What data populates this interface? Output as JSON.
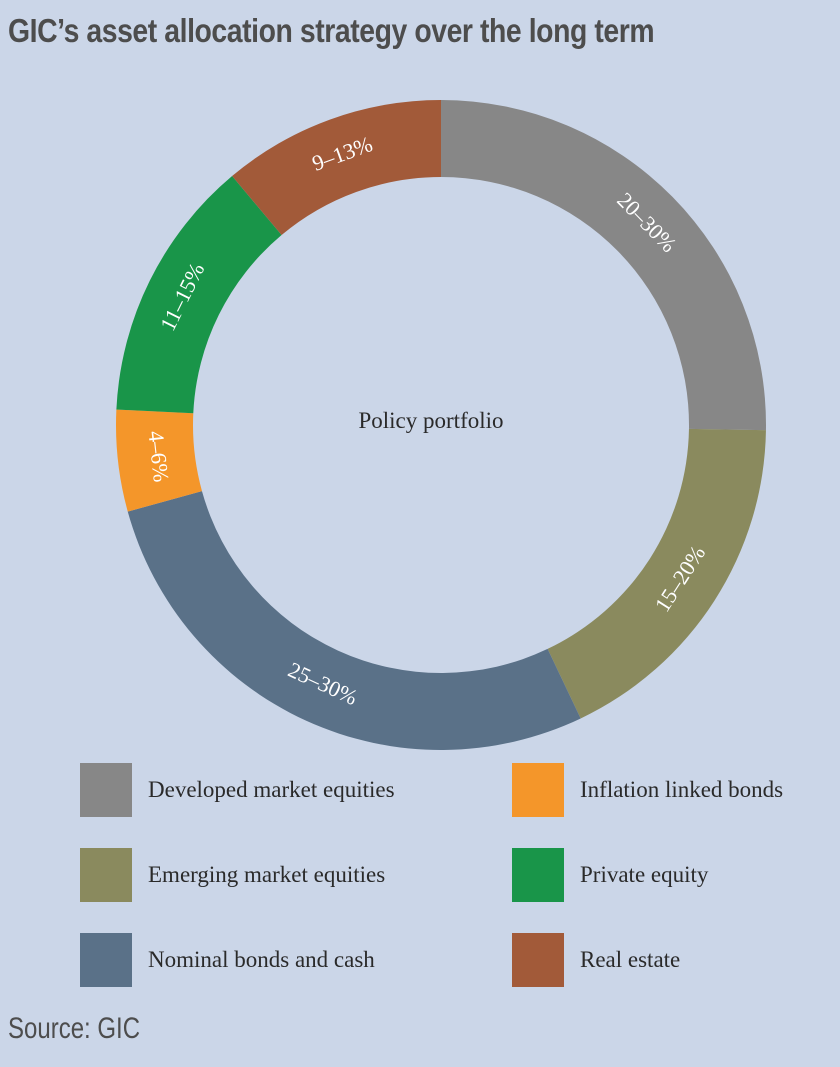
{
  "title": "GIC’s asset allocation strategy over the long term",
  "source": "Source: GIC",
  "chart_data": {
    "type": "pie",
    "style": "donut",
    "center_label": "Policy portfolio",
    "slices": [
      {
        "name": "Developed market equities",
        "label": "20–30%",
        "range": [
          20,
          30
        ],
        "color": "#878787"
      },
      {
        "name": "Emerging market equities",
        "label": "15–20%",
        "range": [
          15,
          20
        ],
        "color": "#8a8a5e"
      },
      {
        "name": "Nominal bonds and cash",
        "label": "25–30%",
        "range": [
          25,
          30
        ],
        "color": "#5a7188"
      },
      {
        "name": "Inflation linked bonds",
        "label": "4–6%",
        "range": [
          4,
          6
        ],
        "color": "#f4962a"
      },
      {
        "name": "Private equity",
        "label": "11–15%",
        "range": [
          11,
          15
        ],
        "color": "#199549"
      },
      {
        "name": "Real estate",
        "label": "9–13%",
        "range": [
          9,
          13
        ],
        "color": "#a25a39"
      }
    ],
    "legend": [
      {
        "label": "Developed market equities",
        "color": "#878787"
      },
      {
        "label": "Inflation linked bonds",
        "color": "#f4962a"
      },
      {
        "label": "Emerging market equities",
        "color": "#8a8a5e"
      },
      {
        "label": "Private equity",
        "color": "#199549"
      },
      {
        "label": "Nominal bonds and cash",
        "color": "#5a7188"
      },
      {
        "label": "Real estate",
        "color": "#a25a39"
      }
    ]
  }
}
